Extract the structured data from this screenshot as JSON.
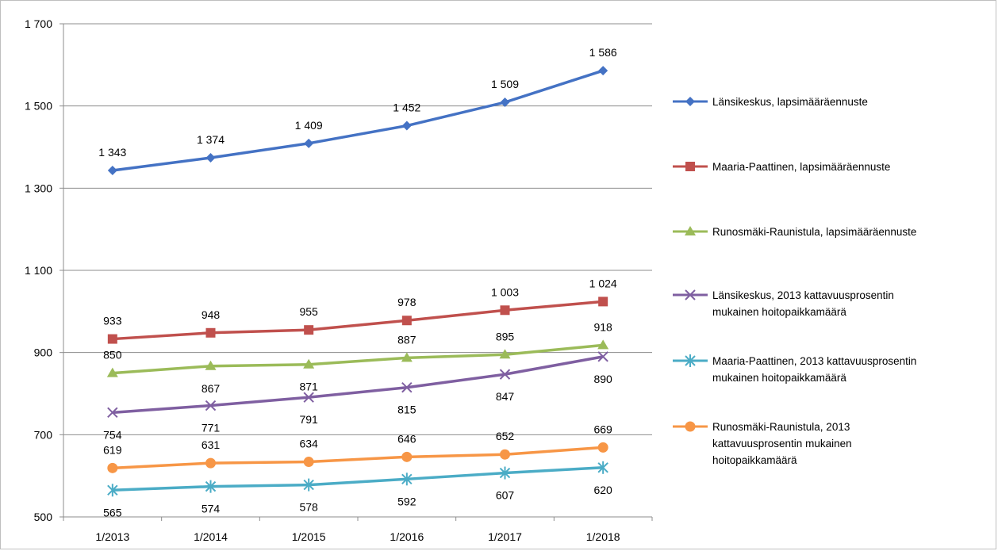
{
  "chart_data": {
    "type": "line",
    "title": "",
    "xlabel": "",
    "ylabel": "",
    "categories": [
      "1/2013",
      "1/2014",
      "1/2015",
      "1/2016",
      "1/2017",
      "1/2018"
    ],
    "ylim": [
      500,
      1700
    ],
    "yticks": [
      500,
      700,
      900,
      1100,
      1300,
      1500,
      1700
    ],
    "ytick_labels": [
      "500",
      "700",
      "900",
      "1 100",
      "1 300",
      "1 500",
      "1 700"
    ],
    "grid": "horizontal",
    "legend_position": "right",
    "series": [
      {
        "name": "Länsikeskus, lapsimääräennuste",
        "legend_lines": [
          "Länsikeskus, lapsimääräennuste"
        ],
        "values": [
          1343,
          1374,
          1409,
          1452,
          1509,
          1586
        ],
        "labels": [
          "1 343",
          "1 374",
          "1 409",
          "1 452",
          "1 509",
          "1 586"
        ],
        "label_side": [
          "above",
          "above",
          "above",
          "above",
          "above",
          "above"
        ],
        "color": "#4472C4",
        "marker": "diamond"
      },
      {
        "name": "Maaria-Paattinen, lapsimääräennuste",
        "legend_lines": [
          "Maaria-Paattinen, lapsimääräennuste"
        ],
        "values": [
          933,
          948,
          955,
          978,
          1003,
          1024
        ],
        "labels": [
          "933",
          "948",
          "955",
          "978",
          "1 003",
          "1 024"
        ],
        "label_side": [
          "above",
          "above",
          "above",
          "above",
          "above",
          "above"
        ],
        "color": "#C0504D",
        "marker": "square"
      },
      {
        "name": "Runosmäki-Raunistula, lapsimääräennuste",
        "legend_lines": [
          "Runosmäki-Raunistula, lapsimääräennuste"
        ],
        "values": [
          850,
          867,
          871,
          887,
          895,
          918
        ],
        "labels": [
          "850",
          "867",
          "871",
          "887",
          "895",
          "918"
        ],
        "label_side": [
          "above",
          "below",
          "below",
          "above",
          "above",
          "above"
        ],
        "color": "#9BBB59",
        "marker": "triangle"
      },
      {
        "name": "Länsikeskus, 2013 kattavuusprosentin mukainen hoitopaikkamäärä",
        "legend_lines": [
          "Länsikeskus, 2013 kattavuusprosentin",
          "mukainen hoitopaikkamäärä"
        ],
        "values": [
          754,
          771,
          791,
          815,
          847,
          890
        ],
        "labels": [
          "754",
          "771",
          "791",
          "815",
          "847",
          "890"
        ],
        "label_side": [
          "below",
          "below",
          "below",
          "below",
          "below",
          "below"
        ],
        "color": "#7F5FA1",
        "marker": "x"
      },
      {
        "name": "Maaria-Paattinen, 2013 kattavuusprosentin mukainen hoitopaikkamäärä",
        "legend_lines": [
          "Maaria-Paattinen, 2013 kattavuusprosentin",
          "mukainen hoitopaikkamäärä"
        ],
        "values": [
          565,
          574,
          578,
          592,
          607,
          620
        ],
        "labels": [
          "565",
          "574",
          "578",
          "592",
          "607",
          "620"
        ],
        "label_side": [
          "below",
          "below",
          "below",
          "below",
          "below",
          "below"
        ],
        "color": "#4BACC6",
        "marker": "asterisk"
      },
      {
        "name": "Runosmäki-Raunistula, 2013 kattavuusprosentin mukainen hoitopaikkamäärä",
        "legend_lines": [
          "Runosmäki-Raunistula, 2013",
          "kattavuusprosentin mukainen",
          "hoitopaikkamäärä"
        ],
        "values": [
          619,
          631,
          634,
          646,
          652,
          669
        ],
        "labels": [
          "619",
          "631",
          "634",
          "646",
          "652",
          "669"
        ],
        "label_side": [
          "above",
          "above",
          "above",
          "above",
          "above",
          "above"
        ],
        "color": "#F79646",
        "marker": "circle"
      }
    ]
  }
}
